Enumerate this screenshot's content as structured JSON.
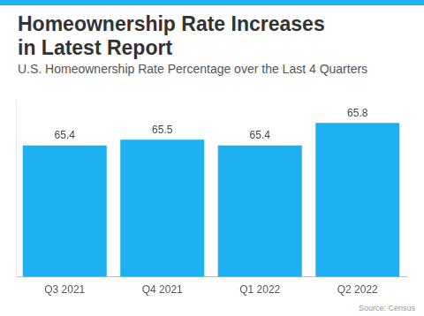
{
  "chart_data": {
    "type": "bar",
    "title": "Homeownership Rate Increases in Latest Report",
    "subtitle": "U.S. Homeownership Rate Percentage over the Last 4 Quarters",
    "source": "Source: Census",
    "categories": [
      "Q3 2021",
      "Q4 2021",
      "Q1 2022",
      "Q2 2022"
    ],
    "values": [
      65.4,
      65.5,
      65.4,
      65.8
    ],
    "color": "#1db1f2",
    "ylim": [
      63.05,
      66.2
    ],
    "grid": false,
    "data_labels": true,
    "tick_labels": "x"
  }
}
